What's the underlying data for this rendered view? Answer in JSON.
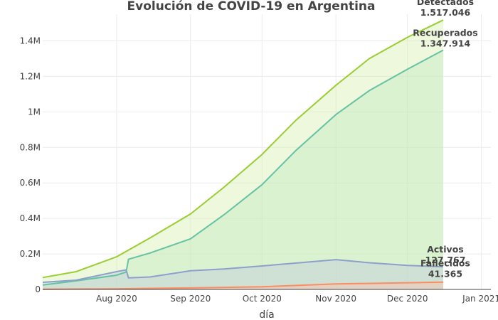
{
  "chart_data": {
    "type": "area",
    "title": "Evolución de COVID-19 en Argentina",
    "xlabel": "día",
    "ylabel": "",
    "x_range": [
      "2020-07-01",
      "2021-01-05"
    ],
    "ylim": [
      0,
      1550000
    ],
    "grid": true,
    "x_ticks": [
      {
        "date": "2020-08-01",
        "label": "Aug 2020"
      },
      {
        "date": "2020-09-01",
        "label": "Sep 2020"
      },
      {
        "date": "2020-10-01",
        "label": "Oct 2020"
      },
      {
        "date": "2020-11-01",
        "label": "Nov 2020"
      },
      {
        "date": "2020-12-01",
        "label": "Dec 2020"
      },
      {
        "date": "2021-01-01",
        "label": "Jan 2021"
      }
    ],
    "y_ticks": [
      {
        "value": 0,
        "label": "0"
      },
      {
        "value": 200000,
        "label": "0.2M"
      },
      {
        "value": 400000,
        "label": "0.4M"
      },
      {
        "value": 600000,
        "label": "0.6M"
      },
      {
        "value": 800000,
        "label": "0.8M"
      },
      {
        "value": 1000000,
        "label": "1M"
      },
      {
        "value": 1200000,
        "label": "1.2M"
      },
      {
        "value": 1400000,
        "label": "1.4M"
      }
    ],
    "series": [
      {
        "name": "Detectados",
        "color": "#9acd32",
        "fill": "rgba(214,240,180,0.45)",
        "points": [
          [
            "2020-07-01",
            67000
          ],
          [
            "2020-07-15",
            100000
          ],
          [
            "2020-08-01",
            184000
          ],
          [
            "2020-08-15",
            290000
          ],
          [
            "2020-09-01",
            425000
          ],
          [
            "2020-09-15",
            575000
          ],
          [
            "2020-10-01",
            760000
          ],
          [
            "2020-10-15",
            950000
          ],
          [
            "2020-11-01",
            1150000
          ],
          [
            "2020-11-15",
            1300000
          ],
          [
            "2020-12-01",
            1420000
          ],
          [
            "2020-12-16",
            1517046
          ]
        ]
      },
      {
        "name": "Recuperados",
        "color": "#66c2a5",
        "fill": "rgba(190,232,190,0.40)",
        "points": [
          [
            "2020-07-01",
            25000
          ],
          [
            "2020-07-15",
            48000
          ],
          [
            "2020-08-01",
            80000
          ],
          [
            "2020-08-05",
            98000
          ],
          [
            "2020-08-06",
            170000
          ],
          [
            "2020-08-15",
            205000
          ],
          [
            "2020-09-01",
            285000
          ],
          [
            "2020-09-15",
            420000
          ],
          [
            "2020-10-01",
            590000
          ],
          [
            "2020-10-15",
            780000
          ],
          [
            "2020-11-01",
            985000
          ],
          [
            "2020-11-15",
            1120000
          ],
          [
            "2020-12-01",
            1240000
          ],
          [
            "2020-12-16",
            1347914
          ]
        ]
      },
      {
        "name": "Activos",
        "color": "#8da0cb",
        "fill": "rgba(190,200,220,0.40)",
        "points": [
          [
            "2020-07-01",
            40000
          ],
          [
            "2020-07-15",
            52000
          ],
          [
            "2020-08-01",
            100000
          ],
          [
            "2020-08-05",
            110000
          ],
          [
            "2020-08-06",
            65000
          ],
          [
            "2020-08-15",
            70000
          ],
          [
            "2020-09-01",
            105000
          ],
          [
            "2020-09-15",
            115000
          ],
          [
            "2020-10-01",
            132000
          ],
          [
            "2020-10-15",
            148000
          ],
          [
            "2020-11-01",
            168000
          ],
          [
            "2020-11-15",
            150000
          ],
          [
            "2020-12-01",
            135000
          ],
          [
            "2020-12-16",
            127767
          ]
        ]
      },
      {
        "name": "Fallecidos",
        "color": "#fc8d62",
        "fill": "rgba(250,190,170,0.45)",
        "points": [
          [
            "2020-07-01",
            1300
          ],
          [
            "2020-08-01",
            3700
          ],
          [
            "2020-09-01",
            8500
          ],
          [
            "2020-10-01",
            15000
          ],
          [
            "2020-11-01",
            31000
          ],
          [
            "2020-12-01",
            37500
          ],
          [
            "2020-12-16",
            41365
          ]
        ]
      }
    ],
    "annotations": [
      {
        "series": "Detectados",
        "name": "Detectados",
        "value": "1.517.046"
      },
      {
        "series": "Recuperados",
        "name": "Recuperados",
        "value": "1.347.914"
      },
      {
        "series": "Activos",
        "name": "Activos",
        "value": "127.767"
      },
      {
        "series": "Fallecidos",
        "name": "Fallecidos",
        "value": "41.365"
      }
    ]
  }
}
